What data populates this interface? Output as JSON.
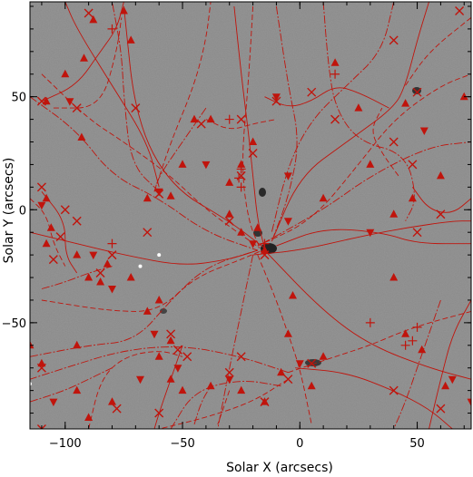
{
  "chart_data": {
    "type": "scatter",
    "title": "",
    "xlabel": "Solar X (arcsecs)",
    "ylabel": "Solar Y (arcsecs)",
    "xlim": [
      -115,
      73
    ],
    "ylim": [
      -97,
      92
    ],
    "xticks": [
      {
        "value": -100,
        "label": "−100"
      },
      {
        "value": -50,
        "label": "−50"
      },
      {
        "value": 0,
        "label": "0"
      },
      {
        "value": 50,
        "label": "50"
      }
    ],
    "yticks": [
      {
        "value": 50,
        "label": "50"
      },
      {
        "value": 0,
        "label": "0"
      },
      {
        "value": -50,
        "label": "−50"
      }
    ],
    "colors": {
      "background": "#8a8a8a",
      "field_lines": "#c0140c",
      "markers": "#c0140c",
      "white_marker": "#ffffff"
    },
    "field_lines": [
      [
        [
          -28,
          90
        ],
        [
          -25,
          60
        ],
        [
          -22,
          35
        ],
        [
          -20,
          15
        ],
        [
          -18,
          -5
        ],
        [
          -15,
          -17
        ]
      ],
      [
        [
          -20,
          90
        ],
        [
          -22,
          55
        ],
        [
          -25,
          20
        ],
        [
          -22,
          -5
        ],
        [
          -17,
          -17
        ]
      ],
      [
        [
          -10,
          90
        ],
        [
          -5,
          55
        ],
        [
          0,
          30
        ],
        [
          -5,
          5
        ],
        [
          -12,
          -14
        ]
      ],
      [
        [
          -75,
          90
        ],
        [
          -70,
          40
        ],
        [
          -55,
          10
        ],
        [
          -30,
          -5
        ],
        [
          -15,
          -17
        ]
      ],
      [
        [
          -110,
          60
        ],
        [
          -90,
          40
        ],
        [
          -75,
          30
        ],
        [
          -55,
          15
        ],
        [
          -40,
          0
        ],
        [
          -17,
          -17
        ]
      ],
      [
        [
          -115,
          50
        ],
        [
          -95,
          35
        ],
        [
          -80,
          15
        ],
        [
          -60,
          5
        ],
        [
          -40,
          -10
        ],
        [
          -18,
          -18
        ]
      ],
      [
        [
          -115,
          -10
        ],
        [
          -95,
          -15
        ],
        [
          -75,
          -20
        ],
        [
          -50,
          -25
        ],
        [
          -30,
          -22
        ],
        [
          -18,
          -18
        ]
      ],
      [
        [
          -110,
          -40
        ],
        [
          -80,
          -45
        ],
        [
          -60,
          -45
        ],
        [
          -45,
          -30
        ],
        [
          -25,
          -22
        ],
        [
          -16,
          -18
        ]
      ],
      [
        [
          -115,
          -65
        ],
        [
          -90,
          -60
        ],
        [
          -70,
          -58
        ],
        [
          -55,
          -40
        ],
        [
          -40,
          -25
        ],
        [
          -18,
          -18
        ]
      ],
      [
        [
          -20,
          -20
        ],
        [
          0,
          -18
        ],
        [
          25,
          -12
        ],
        [
          45,
          -8
        ],
        [
          65,
          -5
        ],
        [
          73,
          -5
        ]
      ],
      [
        [
          -18,
          -16
        ],
        [
          5,
          -5
        ],
        [
          25,
          20
        ],
        [
          40,
          40
        ],
        [
          60,
          55
        ],
        [
          73,
          60
        ]
      ],
      [
        [
          -16,
          -15
        ],
        [
          10,
          0
        ],
        [
          30,
          15
        ],
        [
          55,
          28
        ],
        [
          73,
          30
        ]
      ],
      [
        [
          -10,
          -16
        ],
        [
          10,
          -8
        ],
        [
          35,
          -10
        ],
        [
          50,
          -15
        ],
        [
          73,
          -15
        ]
      ],
      [
        [
          -18,
          -20
        ],
        [
          -10,
          -40
        ],
        [
          -5,
          -55
        ],
        [
          0,
          -70
        ],
        [
          5,
          -95
        ]
      ],
      [
        [
          -20,
          -20
        ],
        [
          -25,
          -45
        ],
        [
          -30,
          -70
        ],
        [
          -35,
          -97
        ]
      ],
      [
        [
          -15,
          -18
        ],
        [
          10,
          -45
        ],
        [
          30,
          -60
        ],
        [
          55,
          -70
        ],
        [
          73,
          -75
        ]
      ],
      [
        [
          -5,
          -72
        ],
        [
          15,
          -65
        ],
        [
          30,
          -60
        ],
        [
          48,
          -52
        ],
        [
          73,
          -45
        ]
      ],
      [
        [
          -5,
          -72
        ],
        [
          -25,
          -65
        ],
        [
          -50,
          -60
        ],
        [
          -75,
          -62
        ],
        [
          -100,
          -70
        ],
        [
          -115,
          -75
        ]
      ],
      [
        [
          -2,
          -70
        ],
        [
          20,
          -72
        ],
        [
          40,
          -80
        ],
        [
          55,
          -88
        ],
        [
          65,
          -97
        ]
      ],
      [
        [
          -5,
          -75
        ],
        [
          -20,
          -85
        ],
        [
          -40,
          -92
        ],
        [
          -60,
          -97
        ]
      ],
      [
        [
          -8,
          -78
        ],
        [
          -25,
          -75
        ],
        [
          -45,
          -80
        ],
        [
          -55,
          -97
        ]
      ],
      [
        [
          -50,
          -60
        ],
        [
          -55,
          -75
        ],
        [
          -60,
          -90
        ],
        [
          -62,
          -97
        ]
      ],
      [
        [
          -90,
          -97
        ],
        [
          -85,
          -75
        ],
        [
          -75,
          -65
        ],
        [
          -60,
          -62
        ],
        [
          -50,
          -65
        ]
      ],
      [
        [
          -115,
          -85
        ],
        [
          -100,
          -80
        ],
        [
          -90,
          -75
        ],
        [
          -80,
          -70
        ]
      ],
      [
        [
          -60,
          10
        ],
        [
          -65,
          30
        ],
        [
          -80,
          55
        ],
        [
          -95,
          80
        ],
        [
          -100,
          92
        ]
      ],
      [
        [
          -62,
          8
        ],
        [
          -55,
          30
        ],
        [
          -45,
          55
        ],
        [
          -40,
          75
        ],
        [
          -38,
          92
        ]
      ],
      [
        [
          -60,
          8
        ],
        [
          -72,
          20
        ],
        [
          -75,
          50
        ],
        [
          -76,
          70
        ],
        [
          -80,
          92
        ]
      ],
      [
        [
          -110,
          48
        ],
        [
          -95,
          55
        ],
        [
          -85,
          70
        ],
        [
          -78,
          80
        ],
        [
          -75,
          92
        ]
      ],
      [
        [
          -105,
          45
        ],
        [
          -85,
          45
        ],
        [
          -78,
          70
        ],
        [
          -76,
          85
        ]
      ],
      [
        [
          40,
          92
        ],
        [
          35,
          70
        ],
        [
          20,
          55
        ],
        [
          5,
          40
        ],
        [
          -5,
          20
        ],
        [
          -12,
          -10
        ]
      ],
      [
        [
          55,
          92
        ],
        [
          50,
          75
        ],
        [
          45,
          55
        ],
        [
          40,
          45
        ],
        [
          20,
          30
        ],
        [
          0,
          15
        ],
        [
          -12,
          -14
        ]
      ],
      [
        [
          73,
          85
        ],
        [
          55,
          70
        ],
        [
          45,
          55
        ]
      ],
      [
        [
          10,
          92
        ],
        [
          12,
          65
        ],
        [
          15,
          45
        ],
        [
          25,
          30
        ],
        [
          45,
          25
        ],
        [
          50,
          5
        ],
        [
          45,
          -5
        ]
      ],
      [
        [
          -15,
          50
        ],
        [
          -5,
          45
        ],
        [
          5,
          48
        ],
        [
          15,
          55
        ],
        [
          25,
          52
        ],
        [
          38,
          45
        ]
      ],
      [
        [
          -40,
          40
        ],
        [
          -30,
          35
        ],
        [
          -20,
          38
        ],
        [
          -10,
          40
        ]
      ],
      [
        [
          -40,
          45
        ],
        [
          -50,
          30
        ],
        [
          -60,
          15
        ],
        [
          -62,
          8
        ]
      ],
      [
        [
          -110,
          8
        ],
        [
          -100,
          -5
        ],
        [
          -100,
          -20
        ],
        [
          -95,
          -28
        ]
      ],
      [
        [
          -115,
          5
        ],
        [
          -108,
          -2
        ],
        [
          -105,
          -15
        ],
        [
          -100,
          -25
        ]
      ],
      [
        [
          -110,
          -35
        ],
        [
          -100,
          -32
        ],
        [
          -90,
          -28
        ],
        [
          -80,
          -25
        ]
      ],
      [
        [
          48,
          10
        ],
        [
          55,
          0
        ],
        [
          65,
          -2
        ],
        [
          73,
          5
        ]
      ],
      [
        [
          42,
          15
        ],
        [
          35,
          25
        ],
        [
          30,
          35
        ],
        [
          35,
          45
        ]
      ],
      [
        [
          60,
          -40
        ],
        [
          55,
          -55
        ],
        [
          50,
          -70
        ],
        [
          45,
          -85
        ],
        [
          40,
          -97
        ]
      ],
      [
        [
          73,
          -40
        ],
        [
          65,
          -55
        ],
        [
          60,
          -75
        ],
        [
          55,
          -97
        ]
      ],
      [
        [
          -30,
          -80
        ],
        [
          -35,
          -95
        ]
      ],
      [
        [
          -45,
          -95
        ],
        [
          -42,
          -85
        ],
        [
          -38,
          -78
        ]
      ]
    ],
    "arrows": [
      [
        -88,
        84
      ],
      [
        -92,
        67
      ],
      [
        -108,
        48
      ],
      [
        -98,
        48
      ],
      [
        -93,
        32
      ],
      [
        -75,
        88
      ],
      [
        -72,
        75
      ],
      [
        -60,
        8
      ],
      [
        -55,
        6
      ],
      [
        -65,
        5
      ],
      [
        -108,
        5
      ],
      [
        -110,
        2
      ],
      [
        -106,
        -8
      ],
      [
        -108,
        -15
      ],
      [
        -95,
        -20
      ],
      [
        -88,
        -20
      ],
      [
        -82,
        -24
      ],
      [
        -90,
        -30
      ],
      [
        -85,
        -32
      ],
      [
        -80,
        -35
      ],
      [
        -72,
        -30
      ],
      [
        -60,
        -40
      ],
      [
        -65,
        -45
      ],
      [
        -62,
        -55
      ],
      [
        -95,
        -60
      ],
      [
        -110,
        -68
      ],
      [
        -55,
        -58
      ],
      [
        -52,
        -70
      ],
      [
        -55,
        -75
      ],
      [
        -50,
        -80
      ],
      [
        -38,
        -78
      ],
      [
        -30,
        -75
      ],
      [
        -25,
        -80
      ],
      [
        -15,
        -85
      ],
      [
        -8,
        -72
      ],
      [
        0,
        -68
      ],
      [
        10,
        -65
      ],
      [
        -5,
        -55
      ],
      [
        -15,
        -18
      ],
      [
        -20,
        -15
      ],
      [
        -18,
        -8
      ],
      [
        -25,
        -10
      ],
      [
        -30,
        -2
      ],
      [
        -5,
        -5
      ],
      [
        -45,
        40
      ],
      [
        -38,
        40
      ],
      [
        -20,
        30
      ],
      [
        -10,
        50
      ],
      [
        15,
        65
      ],
      [
        25,
        45
      ],
      [
        45,
        47
      ],
      [
        53,
        35
      ],
      [
        60,
        15
      ],
      [
        48,
        5
      ],
      [
        40,
        -2
      ],
      [
        30,
        -10
      ],
      [
        40,
        -30
      ],
      [
        45,
        -55
      ],
      [
        52,
        -62
      ],
      [
        65,
        -75
      ],
      [
        -3,
        -38
      ],
      [
        5,
        -78
      ],
      [
        -60,
        -65
      ],
      [
        -68,
        -75
      ],
      [
        -80,
        -85
      ],
      [
        -90,
        -92
      ],
      [
        -95,
        -80
      ],
      [
        -105,
        -85
      ],
      [
        -115,
        -60
      ],
      [
        30,
        20
      ],
      [
        10,
        5
      ],
      [
        -5,
        15
      ],
      [
        -25,
        20
      ],
      [
        -30,
        12
      ],
      [
        -50,
        20
      ],
      [
        -40,
        20
      ],
      [
        -100,
        60
      ],
      [
        70,
        50
      ],
      [
        62,
        -78
      ],
      [
        73,
        -85
      ]
    ],
    "crosses": [
      [
        -90,
        87
      ],
      [
        -110,
        48
      ],
      [
        -110,
        -70
      ],
      [
        -105,
        -22
      ],
      [
        -95,
        45
      ],
      [
        -110,
        10
      ],
      [
        -60,
        7
      ],
      [
        -48,
        -65
      ],
      [
        -15,
        -85
      ],
      [
        -25,
        40
      ],
      [
        -10,
        48
      ],
      [
        40,
        75
      ],
      [
        50,
        52
      ],
      [
        40,
        30
      ],
      [
        50,
        -10
      ],
      [
        40,
        -80
      ],
      [
        60,
        -88
      ],
      [
        5,
        -68
      ],
      [
        -5,
        -75
      ],
      [
        -15,
        -20
      ],
      [
        -20,
        25
      ],
      [
        -25,
        15
      ],
      [
        -30,
        -5
      ],
      [
        -42,
        38
      ],
      [
        5,
        52
      ],
      [
        15,
        40
      ],
      [
        -55,
        -55
      ],
      [
        -30,
        -72
      ],
      [
        -25,
        -65
      ],
      [
        -65,
        -10
      ],
      [
        -95,
        -5
      ],
      [
        -70,
        45
      ],
      [
        68,
        88
      ],
      [
        -110,
        -97
      ],
      [
        -60,
        -90
      ],
      [
        -52,
        -62
      ],
      [
        -80,
        -20
      ],
      [
        -85,
        -28
      ],
      [
        -100,
        0
      ],
      [
        60,
        -2
      ],
      [
        48,
        20
      ],
      [
        -102,
        -12
      ],
      [
        -78,
        -88
      ]
    ],
    "plus": [
      [
        -80,
        80
      ],
      [
        15,
        60
      ],
      [
        -30,
        40
      ],
      [
        -25,
        18
      ],
      [
        -26,
        14
      ],
      [
        -25,
        10
      ],
      [
        30,
        -50
      ],
      [
        50,
        -52
      ],
      [
        45,
        -60
      ],
      [
        -80,
        -15
      ],
      [
        48,
        -58
      ],
      [
        -15,
        -15
      ]
    ],
    "white_dots": [
      [
        -115,
        -77
      ],
      [
        -68,
        -25
      ],
      [
        -60,
        -20
      ]
    ]
  }
}
